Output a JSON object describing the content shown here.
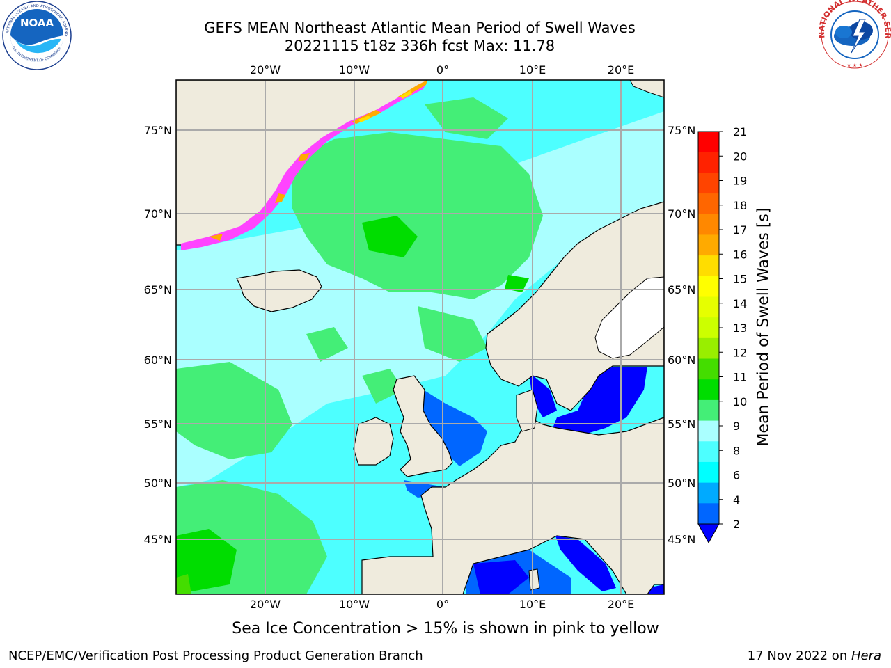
{
  "header": {
    "title_line1": "GEFS MEAN Northeast Atlantic Mean Period of Swell Waves",
    "title_line2": "20221115 t18z 336h fcst   Max: 11.78"
  },
  "logos": {
    "noaa": {
      "icon": "noaa-logo",
      "text": "NOAA",
      "ring_text": "NATIONAL OCEANIC AND ATMOSPHERIC ADMINISTRATION · U.S. DEPARTMENT OF COMMERCE"
    },
    "nws": {
      "icon": "national-weather-service-logo",
      "ring_text": "NATIONAL WEATHER SERVICE"
    }
  },
  "map": {
    "region": "Northeast Atlantic",
    "lon_range": [
      -30,
      25
    ],
    "lat_range": [
      41,
      78
    ],
    "top_lon_labels": [
      "20°W",
      "10°W",
      "0°",
      "10°E",
      "20°E"
    ],
    "bottom_lon_labels": [
      "20°W",
      "10°W",
      "0°",
      "10°E",
      "20°E"
    ],
    "left_lat_labels": [
      "75°N",
      "70°N",
      "65°N",
      "60°N",
      "55°N",
      "50°N",
      "45°N"
    ],
    "right_lat_labels": [
      "75°N",
      "70°N",
      "65°N",
      "60°N",
      "55°N",
      "50°N",
      "45°N"
    ],
    "colors": {
      "ocean_default": "#4dffff",
      "land": "#efebdd",
      "ice": "#ff44ff",
      "grid": "#aaaaaa"
    }
  },
  "colorbar": {
    "label": "Mean Period of Swell Waves [s]",
    "ticks": [
      "21",
      "20",
      "19",
      "18",
      "17",
      "16",
      "15",
      "14",
      "13",
      "12",
      "11",
      "10",
      "9",
      "8",
      "6",
      "4",
      "2"
    ],
    "colors": [
      "#ff0000",
      "#ff2200",
      "#ff4400",
      "#ff6600",
      "#ff8800",
      "#ffaa00",
      "#ffdd00",
      "#ffff00",
      "#e6ff00",
      "#ccff00",
      "#99ee00",
      "#44dd00",
      "#00dd00",
      "#44ee77",
      "#aaffff",
      "#4dffff",
      "#00ffff",
      "#00aaff",
      "#0066ff"
    ],
    "extend_color": "#0000ff"
  },
  "notes": {
    "ice": "Sea Ice Concentration > 15% is shown in pink to yellow"
  },
  "footer": {
    "left": "NCEP/EMC/Verification Post Processing Product Generation Branch",
    "right_prefix": "17 Nov 2022 on ",
    "right_host": "Hera"
  }
}
